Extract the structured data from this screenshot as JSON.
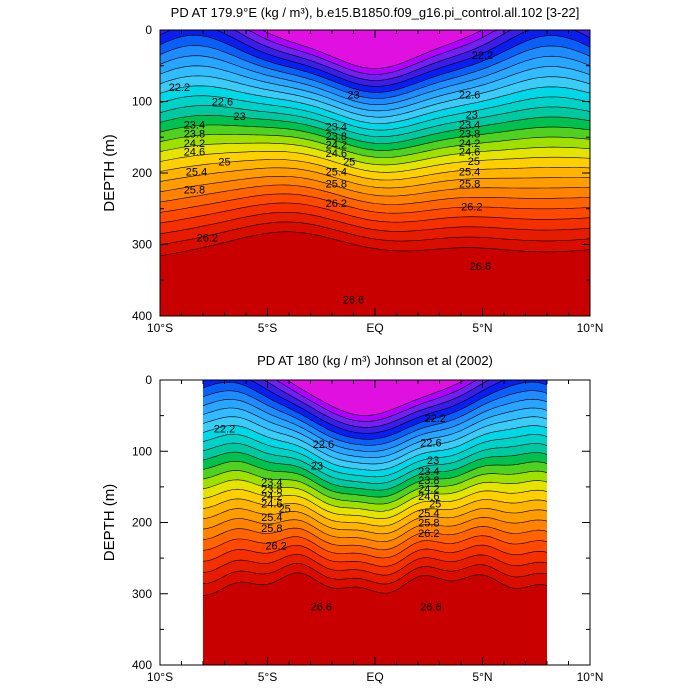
{
  "chart_data": [
    {
      "type": "contour",
      "title": "PD AT 179.9°E (kg / m³), b.e15.B1850.f09_g16.pi_control.all.102 [3-22]",
      "ylabel": "DEPTH (m)",
      "xlim": [
        -10,
        10
      ],
      "ylim": [
        0,
        400
      ],
      "x_ticks": [
        -10,
        -5,
        0,
        5,
        10
      ],
      "x_tick_labels": [
        "10°S",
        "5°S",
        "EQ",
        "5°N",
        "10°N"
      ],
      "y_ticks": [
        0,
        100,
        200,
        300,
        400
      ],
      "y_tick_labels": [
        "0",
        "100",
        "200",
        "300",
        "400"
      ],
      "data_x_range": [
        -10,
        10
      ],
      "contour_levels": [
        21.4,
        21.6,
        21.8,
        22.0,
        22.2,
        22.4,
        22.6,
        22.8,
        23.0,
        23.2,
        23.4,
        23.6,
        23.8,
        24.0,
        24.2,
        24.4,
        24.6,
        24.8,
        25.0,
        25.2,
        25.4,
        25.6,
        25.8,
        26.0,
        26.2,
        26.4,
        26.6
      ],
      "level_colors": [
        "#e010e0",
        "#b000ff",
        "#7020f0",
        "#3a1ee6",
        "#0a1ef0",
        "#0a5ff6",
        "#1e8cff",
        "#28a5ff",
        "#32bbff",
        "#3acbf7",
        "#00d8e8",
        "#00d2c8",
        "#00c8a0",
        "#00c050",
        "#50d020",
        "#a0e000",
        "#e4e400",
        "#ffd000",
        "#ffb400",
        "#ff9c00",
        "#ff8200",
        "#ff6400",
        "#ff4800",
        "#f53000",
        "#e61c00",
        "#d80d00",
        "#c80000"
      ],
      "labels": [
        {
          "text": "22.2",
          "x": -9.1,
          "y": 80
        },
        {
          "text": "22.6",
          "x": -7.1,
          "y": 100
        },
        {
          "text": "23",
          "x": -6.3,
          "y": 120
        },
        {
          "text": "23.4",
          "x": -8.4,
          "y": 132
        },
        {
          "text": "23.8",
          "x": -8.4,
          "y": 145
        },
        {
          "text": "24.2",
          "x": -8.4,
          "y": 158
        },
        {
          "text": "24.6",
          "x": -8.4,
          "y": 170
        },
        {
          "text": "25",
          "x": -7.0,
          "y": 184
        },
        {
          "text": "25.4",
          "x": -8.3,
          "y": 198
        },
        {
          "text": "25.8",
          "x": -8.4,
          "y": 223
        },
        {
          "text": "26.2",
          "x": -7.8,
          "y": 290
        },
        {
          "text": "23",
          "x": -1.0,
          "y": 90
        },
        {
          "text": "23.4",
          "x": -1.8,
          "y": 135
        },
        {
          "text": "23.8",
          "x": -1.8,
          "y": 148
        },
        {
          "text": "24.2",
          "x": -1.8,
          "y": 160
        },
        {
          "text": "24.6",
          "x": -1.8,
          "y": 172
        },
        {
          "text": "25",
          "x": -1.2,
          "y": 184
        },
        {
          "text": "25.4",
          "x": -1.8,
          "y": 198
        },
        {
          "text": "25.8",
          "x": -1.8,
          "y": 215
        },
        {
          "text": "26.2",
          "x": -1.8,
          "y": 242
        },
        {
          "text": "26.6",
          "x": -1.0,
          "y": 377
        },
        {
          "text": "22.2",
          "x": 5.0,
          "y": 35
        },
        {
          "text": "22.6",
          "x": 4.4,
          "y": 90
        },
        {
          "text": "23",
          "x": 4.5,
          "y": 118
        },
        {
          "text": "23.4",
          "x": 4.4,
          "y": 132
        },
        {
          "text": "23.8",
          "x": 4.4,
          "y": 145
        },
        {
          "text": "24.2",
          "x": 4.4,
          "y": 158
        },
        {
          "text": "24.6",
          "x": 4.4,
          "y": 170
        },
        {
          "text": "25",
          "x": 4.6,
          "y": 183
        },
        {
          "text": "25.4",
          "x": 4.4,
          "y": 198
        },
        {
          "text": "25.8",
          "x": 4.4,
          "y": 215
        },
        {
          "text": "26.2",
          "x": 4.5,
          "y": 247
        },
        {
          "text": "26.6",
          "x": 4.9,
          "y": 330
        }
      ]
    },
    {
      "type": "contour",
      "title": "PD AT 180 (kg / m³) Johnson et al (2002)",
      "ylabel": "DEPTH (m)",
      "xlim": [
        -10,
        10
      ],
      "ylim": [
        0,
        400
      ],
      "x_ticks": [
        -10,
        -5,
        0,
        5,
        10
      ],
      "x_tick_labels": [
        "10°S",
        "5°S",
        "EQ",
        "5°N",
        "10°N"
      ],
      "y_ticks": [
        0,
        100,
        200,
        300,
        400
      ],
      "y_tick_labels": [
        "0",
        "100",
        "200",
        "300",
        "400"
      ],
      "data_x_range": [
        -8,
        8
      ],
      "contour_levels": [
        21.4,
        21.6,
        21.8,
        22.0,
        22.2,
        22.4,
        22.6,
        22.8,
        23.0,
        23.2,
        23.4,
        23.6,
        23.8,
        24.0,
        24.2,
        24.4,
        24.6,
        24.8,
        25.0,
        25.2,
        25.4,
        25.6,
        25.8,
        26.0,
        26.2,
        26.4,
        26.6
      ],
      "level_colors": [
        "#e010e0",
        "#b000ff",
        "#7020f0",
        "#3a1ee6",
        "#0a1ef0",
        "#0a5ff6",
        "#1e8cff",
        "#28a5ff",
        "#32bbff",
        "#3acbf7",
        "#00d8e8",
        "#00d2c8",
        "#00c8a0",
        "#00c050",
        "#50d020",
        "#a0e000",
        "#e4e400",
        "#ffd000",
        "#ffb400",
        "#ff9c00",
        "#ff8200",
        "#ff6400",
        "#ff4800",
        "#f53000",
        "#e61c00",
        "#d80d00",
        "#c80000"
      ],
      "labels": [
        {
          "text": "22.2",
          "x": -7.0,
          "y": 68
        },
        {
          "text": "22.6",
          "x": -2.4,
          "y": 90
        },
        {
          "text": "23",
          "x": -2.7,
          "y": 120
        },
        {
          "text": "23.4",
          "x": -4.8,
          "y": 143
        },
        {
          "text": "23.8",
          "x": -4.8,
          "y": 153
        },
        {
          "text": "24.2",
          "x": -4.8,
          "y": 163
        },
        {
          "text": "24.6",
          "x": -4.8,
          "y": 173
        },
        {
          "text": "25",
          "x": -4.2,
          "y": 180
        },
        {
          "text": "25.4",
          "x": -4.8,
          "y": 192
        },
        {
          "text": "25.8",
          "x": -4.8,
          "y": 208
        },
        {
          "text": "26.2",
          "x": -4.6,
          "y": 232
        },
        {
          "text": "26.6",
          "x": -2.5,
          "y": 318
        },
        {
          "text": "22.2",
          "x": 2.8,
          "y": 53
        },
        {
          "text": "22.6",
          "x": 2.6,
          "y": 88
        },
        {
          "text": "23",
          "x": 2.7,
          "y": 112
        },
        {
          "text": "23.4",
          "x": 2.5,
          "y": 128
        },
        {
          "text": "23.8",
          "x": 2.5,
          "y": 140
        },
        {
          "text": "24.2",
          "x": 2.5,
          "y": 152
        },
        {
          "text": "24.6",
          "x": 2.5,
          "y": 163
        },
        {
          "text": "25",
          "x": 2.8,
          "y": 173
        },
        {
          "text": "25.4",
          "x": 2.5,
          "y": 187
        },
        {
          "text": "25.8",
          "x": 2.5,
          "y": 200
        },
        {
          "text": "26.2",
          "x": 2.5,
          "y": 215
        },
        {
          "text": "26.6",
          "x": 2.6,
          "y": 318
        }
      ]
    }
  ]
}
